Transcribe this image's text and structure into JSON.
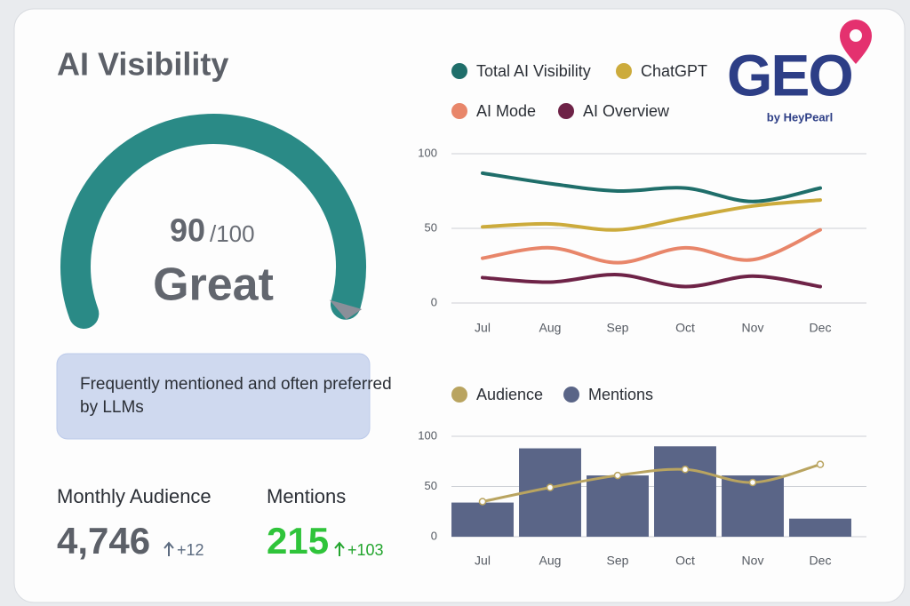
{
  "header": {
    "title": "AI Visibility"
  },
  "logo": {
    "text": "GEO",
    "byline": "by HeyPearl"
  },
  "gauge": {
    "score": 90,
    "out_of": {
      "value": 100,
      "label": "/100"
    },
    "rating": "Great",
    "color": "#2a8a86"
  },
  "description": "Frequently mentioned and often preferred by LLMs",
  "metrics": [
    {
      "label": "Monthly Audience",
      "value": {
        "value": 4746,
        "label": "4,746"
      },
      "change": {
        "value": 12,
        "label": "+12"
      }
    },
    {
      "label": "Mentions",
      "value": 215,
      "change": {
        "value": 103,
        "label": "+103"
      }
    }
  ],
  "chart_data": [
    {
      "type": "line",
      "categories": [
        "Jul",
        "Aug",
        "Sep",
        "Oct",
        "Nov",
        "Dec"
      ],
      "series": [
        {
          "name": "Total AI Visibility",
          "color": "#1f6e6a",
          "values": [
            87,
            80,
            75,
            77,
            68,
            77
          ]
        },
        {
          "name": "ChatGPT",
          "color": "#ccab3c",
          "values": [
            51,
            53,
            49,
            57,
            65,
            69
          ]
        },
        {
          "name": "AI Mode",
          "color": "#e8866a",
          "values": [
            30,
            37,
            27,
            37,
            29,
            49
          ]
        },
        {
          "name": "AI Overview",
          "color": "#6e2347",
          "values": [
            17,
            14,
            19,
            11,
            18,
            11
          ]
        }
      ],
      "ylim": [
        0,
        100
      ],
      "yticks": [
        0,
        50,
        100
      ],
      "grid": true
    },
    {
      "type": "bar",
      "categories": [
        "Jul",
        "Aug",
        "Sep",
        "Oct",
        "Nov",
        "Dec"
      ],
      "series": [
        {
          "name": "Audience",
          "type": "line",
          "color": "#b9a460",
          "values": [
            35,
            49,
            61,
            67,
            54,
            72
          ]
        },
        {
          "name": "Mentions",
          "type": "bar",
          "color": "#5a6587",
          "values": [
            34,
            88,
            61,
            90,
            61,
            18
          ]
        }
      ],
      "ylim": [
        0,
        100
      ],
      "yticks": [
        0,
        50,
        100
      ],
      "grid": true
    }
  ]
}
